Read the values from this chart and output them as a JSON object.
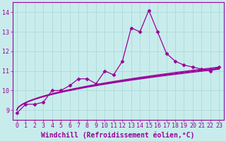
{
  "title": "",
  "xlabel": "Windchill (Refroidissement éolien,°C)",
  "ylabel": "",
  "bg_color": "#c8ecec",
  "line_color": "#990099",
  "grid_color": "#b0d8d8",
  "xlim": [
    -0.5,
    23.5
  ],
  "ylim": [
    8.5,
    14.5
  ],
  "yticks": [
    9,
    10,
    11,
    12,
    13,
    14
  ],
  "xticks": [
    0,
    1,
    2,
    3,
    4,
    5,
    6,
    7,
    8,
    9,
    10,
    11,
    12,
    13,
    14,
    15,
    16,
    17,
    18,
    19,
    20,
    21,
    22,
    23
  ],
  "main_series_x": [
    0,
    1,
    2,
    3,
    4,
    5,
    6,
    7,
    8,
    9,
    10,
    11,
    12,
    13,
    14,
    15,
    16,
    17,
    18,
    19,
    20,
    21,
    22,
    23
  ],
  "main_series_y": [
    8.85,
    9.3,
    9.3,
    9.4,
    10.0,
    10.0,
    10.25,
    10.6,
    10.6,
    10.35,
    11.0,
    10.8,
    11.5,
    13.2,
    13.0,
    14.1,
    13.0,
    11.9,
    11.5,
    11.3,
    11.2,
    11.1,
    11.0,
    11.2
  ],
  "curve_lines": [
    {
      "a": 9.0,
      "b": 0.75,
      "c": 0.0
    },
    {
      "a": 9.1,
      "b": 0.65,
      "c": 0.0
    },
    {
      "a": 9.2,
      "b": 0.55,
      "c": 0.0
    },
    {
      "a": 9.3,
      "b": 0.45,
      "c": 0.0
    }
  ],
  "marker": "D",
  "markersize": 2.5,
  "linewidth": 0.9,
  "xlabel_fontsize": 7,
  "tick_fontsize": 6,
  "ylabel_fontsize": 6
}
